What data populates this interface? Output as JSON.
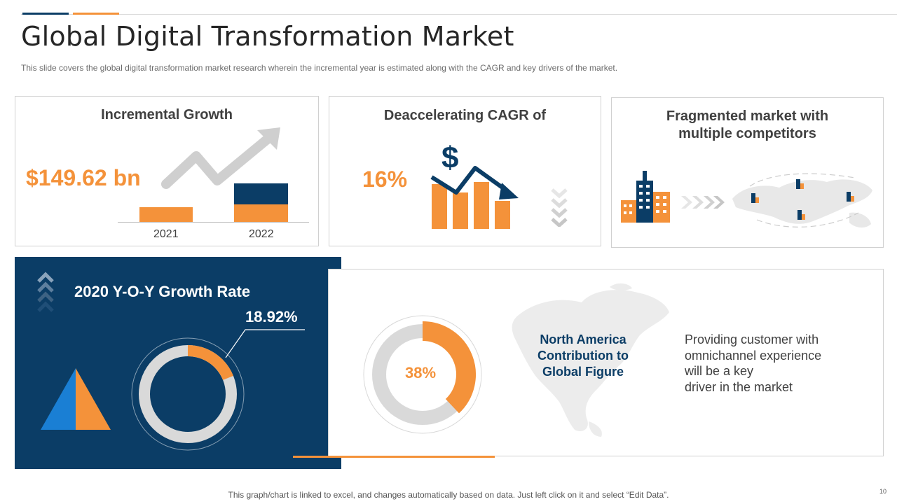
{
  "header": {
    "title": "Global Digital Transformation Market",
    "subtitle": "This slide covers the global digital transformation market research wherein the incremental year is estimated along with the CAGR and key drivers of the market."
  },
  "cards": {
    "incremental": {
      "title": "Incremental Growth",
      "value": "$149.62 bn",
      "years": [
        "2021",
        "2022"
      ]
    },
    "cagr": {
      "title": "Deaccelerating CAGR of",
      "value": "16%"
    },
    "fragmented": {
      "title_line1": "Fragmented market with",
      "title_line2": "multiple competitors"
    }
  },
  "growth_panel": {
    "title": "2020 Y-O-Y Growth Rate",
    "value": "18.92%",
    "fraction": 0.1892
  },
  "north_america": {
    "title_line1": "North America",
    "title_line2": "Contribution to",
    "title_line3": "Global Figure",
    "value": "38%",
    "fraction": 0.38,
    "driver_line1": "Providing customer with",
    "driver_line2": "omnichannel experience",
    "driver_line3": "will be a key",
    "driver_line4": "driver in the market"
  },
  "footer": {
    "note": "This graph/chart is linked to excel, and changes automatically based on data. Just left click on it and select “Edit Data”.",
    "page_number": "10"
  },
  "colors": {
    "navy": "#0b3d66",
    "orange": "#f4923a",
    "gray": "#d9d9d9",
    "bright_blue": "#1a7fd4"
  }
}
